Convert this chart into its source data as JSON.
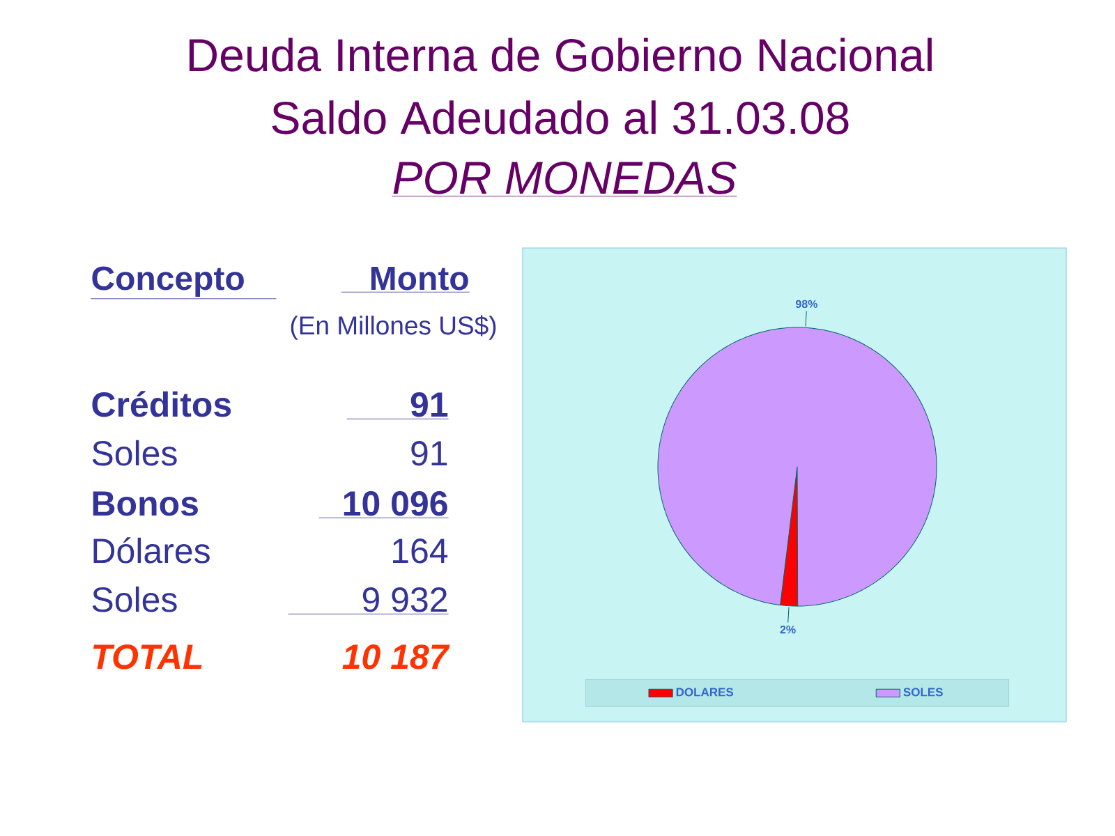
{
  "chart_data": [
    {
      "type": "other",
      "title": "Deuda Interna de Gobierno Nacional",
      "subtitle": "Saldo Adeudado al 31.03.08",
      "annotations": [
        "POR MONEDAS",
        "Concepto",
        "Monto",
        "(En Millones US$)",
        "Créditos",
        "91",
        "Soles",
        "91",
        "Bonos",
        "10 096",
        "Dólares",
        "164",
        "Soles",
        "9 932",
        "TOTAL",
        "10 187"
      ]
    },
    {
      "type": "pie",
      "categories": [
        "DOLARES",
        "SOLES"
      ],
      "values": [
        2,
        98
      ],
      "colors": [
        "#ff0000",
        "#cc99ff"
      ],
      "value_labels": [
        "2%",
        "98%"
      ],
      "legend": "bottom"
    }
  ]
}
